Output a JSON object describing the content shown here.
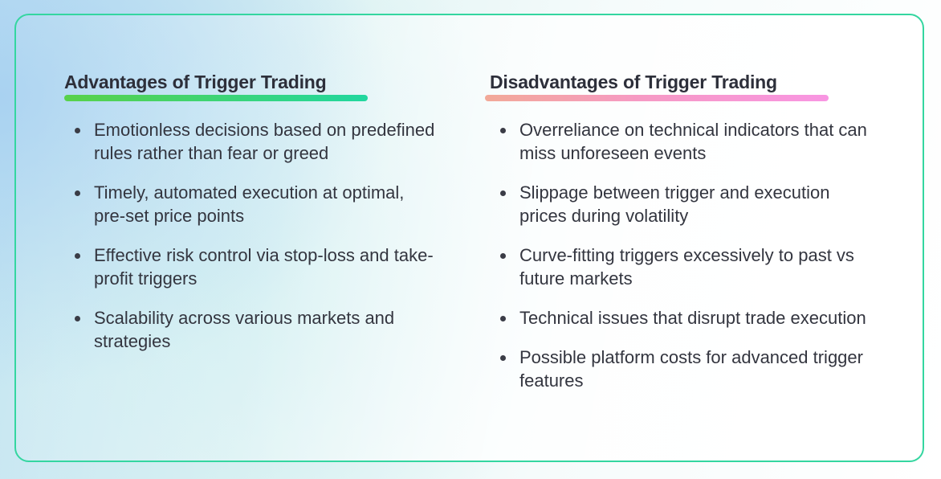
{
  "advantages": {
    "title": "Advantages of Trigger Trading",
    "items": [
      "Emotionless decisions based on predefined rules rather than fear or greed",
      "Timely, automated execution at optimal, pre-set price points",
      "Effective risk control via stop-loss and take-profit triggers",
      "Scalability across various markets and strategies"
    ]
  },
  "disadvantages": {
    "title": "Disadvantages of Trigger Trading",
    "items": [
      "Overreliance on technical indicators that can miss unforeseen events",
      "Slippage between trigger and execution prices during volatility",
      "Curve-fitting triggers excessively to past vs future markets",
      "Technical issues that disrupt trade execution",
      "Possible platform costs for advanced trigger features"
    ]
  },
  "colors": {
    "border": "#34d6a0",
    "advantages_underline": [
      "#59d14a",
      "#21d79f"
    ],
    "disadvantages_underline": [
      "#f2a998",
      "#f895e2"
    ],
    "text": "#33353f"
  }
}
